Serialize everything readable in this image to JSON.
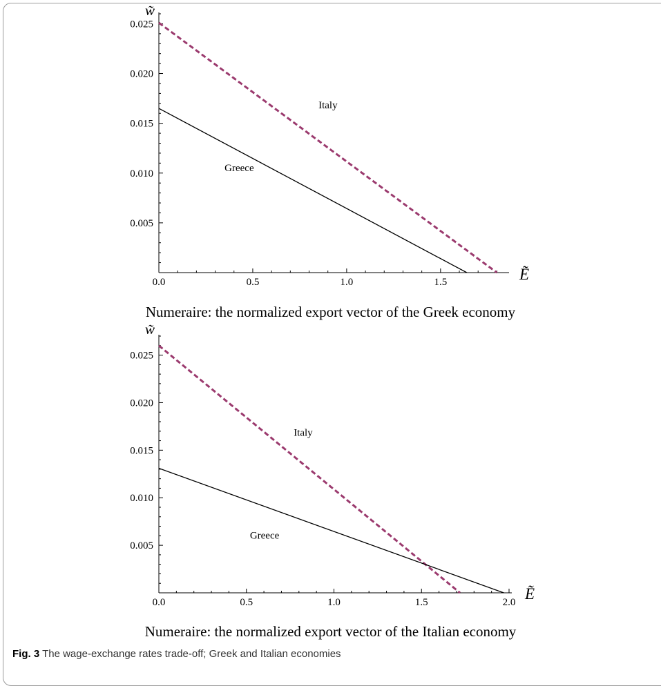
{
  "figure": {
    "label": "Fig. 3",
    "caption": "The wage-exchange rates trade-off; Greek and Italian economies"
  },
  "chart_data": [
    {
      "type": "line",
      "numeraire": "Numeraire: the normalized export vector of the Greek economy",
      "xlabel": "Ẽ",
      "ylabel": "w̃",
      "xlim": [
        0,
        1.85
      ],
      "ylim": [
        0,
        0.026
      ],
      "xticks": [
        0.0,
        0.5,
        1.0,
        1.5
      ],
      "xtick_labels": [
        "0.0",
        "0.5",
        "1.0",
        "1.5"
      ],
      "yticks": [
        0.005,
        0.01,
        0.015,
        0.02,
        0.025
      ],
      "ytick_labels": [
        "0.005",
        "0.010",
        "0.015",
        "0.020",
        "0.025"
      ],
      "grid": false,
      "annotations": [
        {
          "text": "Italy",
          "x": 0.85,
          "y": 0.0165
        },
        {
          "text": "Greece",
          "x": 0.35,
          "y": 0.0102
        }
      ],
      "series": [
        {
          "name": "Italy",
          "style": "dashed",
          "color": "#9b3a6e",
          "x": [
            0,
            1.8
          ],
          "y": [
            0.0251,
            0
          ]
        },
        {
          "name": "Greece",
          "style": "solid",
          "color": "#000000",
          "x": [
            0,
            1.64
          ],
          "y": [
            0.0165,
            0
          ]
        }
      ]
    },
    {
      "type": "line",
      "numeraire": "Numeraire: the normalized export vector of the Italian economy",
      "xlabel": "Ẽ",
      "ylabel": "w̃",
      "xlim": [
        0,
        2.0
      ],
      "ylim": [
        0,
        0.027
      ],
      "xticks": [
        0.0,
        0.5,
        1.0,
        1.5,
        2.0
      ],
      "xtick_labels": [
        "0.0",
        "0.5",
        "1.0",
        "1.5",
        "2.0"
      ],
      "yticks": [
        0.005,
        0.01,
        0.015,
        0.02,
        0.025
      ],
      "ytick_labels": [
        "0.005",
        "0.010",
        "0.015",
        "0.020",
        "0.025"
      ],
      "grid": false,
      "annotations": [
        {
          "text": "Italy",
          "x": 0.77,
          "y": 0.0165
        },
        {
          "text": "Greece",
          "x": 0.52,
          "y": 0.0057
        }
      ],
      "series": [
        {
          "name": "Italy",
          "style": "dashed",
          "color": "#9b3a6e",
          "x": [
            0,
            1.72
          ],
          "y": [
            0.026,
            0
          ]
        },
        {
          "name": "Greece",
          "style": "solid",
          "color": "#000000",
          "x": [
            0,
            1.97
          ],
          "y": [
            0.0131,
            0
          ]
        }
      ]
    }
  ]
}
